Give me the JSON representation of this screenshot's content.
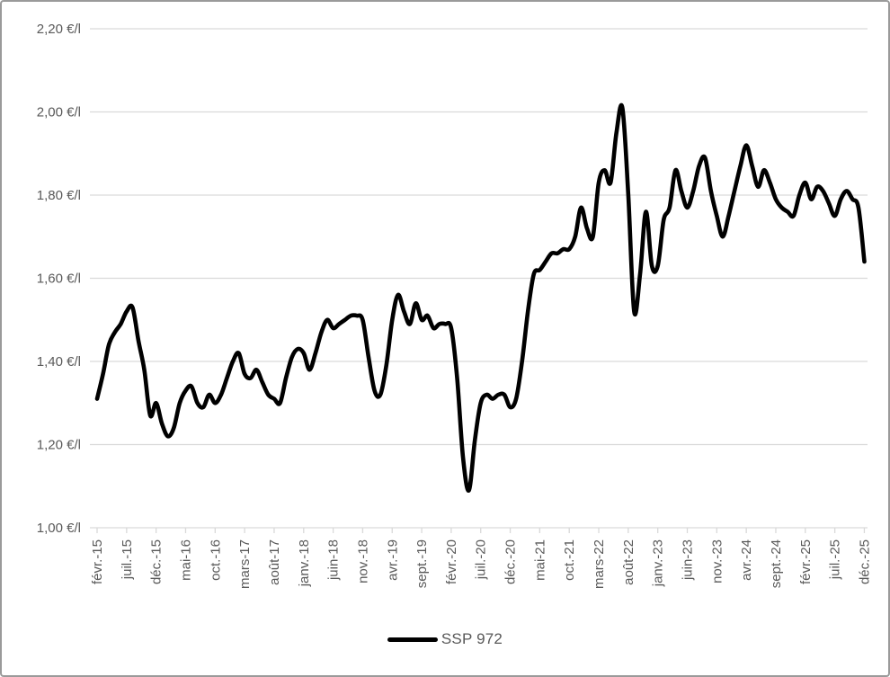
{
  "chart_data": {
    "type": "line",
    "title": "",
    "xlabel": "",
    "ylabel": "",
    "ylim": [
      1.0,
      2.2
    ],
    "y_step": 0.2,
    "y_tick_labels": [
      "2,20 €/l",
      "2,00 €/l",
      "1,80 €/l",
      "1,60 €/l",
      "1,40 €/l",
      "1,20 €/l",
      "1,00 €/l"
    ],
    "x_tick_labels": [
      "févr.-15",
      "juil.-15",
      "déc.-15",
      "mai-16",
      "oct.-16",
      "mars-17",
      "août-17",
      "janv.-18",
      "juin-18",
      "nov.-18",
      "avr.-19",
      "sept.-19",
      "févr.-20",
      "juil.-20",
      "déc.-20",
      "mai-21",
      "oct.-21",
      "mars-22",
      "août-22",
      "janv.-23",
      "juin-23",
      "nov.-23",
      "avr.-24",
      "sept.-24",
      "févr.-25",
      "juil.-25",
      "déc.-25"
    ],
    "x_tick_every_n_points": 5,
    "x_unit": "month",
    "grid": "horizontal",
    "legend_position": "bottom",
    "series": [
      {
        "name": "SSP 972",
        "values": [
          1.31,
          1.37,
          1.44,
          1.47,
          1.49,
          1.52,
          1.53,
          1.45,
          1.38,
          1.27,
          1.3,
          1.25,
          1.22,
          1.24,
          1.3,
          1.33,
          1.34,
          1.3,
          1.29,
          1.32,
          1.3,
          1.32,
          1.36,
          1.4,
          1.42,
          1.37,
          1.36,
          1.38,
          1.35,
          1.32,
          1.31,
          1.3,
          1.36,
          1.41,
          1.43,
          1.42,
          1.38,
          1.42,
          1.47,
          1.5,
          1.48,
          1.49,
          1.5,
          1.51,
          1.51,
          1.5,
          1.41,
          1.33,
          1.32,
          1.39,
          1.5,
          1.56,
          1.52,
          1.49,
          1.54,
          1.5,
          1.51,
          1.48,
          1.49,
          1.49,
          1.48,
          1.36,
          1.17,
          1.09,
          1.21,
          1.3,
          1.32,
          1.31,
          1.32,
          1.32,
          1.29,
          1.31,
          1.4,
          1.52,
          1.61,
          1.62,
          1.64,
          1.66,
          1.66,
          1.67,
          1.67,
          1.7,
          1.77,
          1.72,
          1.7,
          1.83,
          1.86,
          1.83,
          1.95,
          2.01,
          1.8,
          1.52,
          1.61,
          1.76,
          1.63,
          1.63,
          1.74,
          1.77,
          1.86,
          1.81,
          1.77,
          1.81,
          1.87,
          1.89,
          1.81,
          1.75,
          1.7,
          1.75,
          1.81,
          1.87,
          1.92,
          1.87,
          1.82,
          1.86,
          1.83,
          1.79,
          1.77,
          1.76,
          1.75,
          1.8,
          1.83,
          1.79,
          1.82,
          1.81,
          1.78,
          1.75,
          1.79,
          1.81,
          1.79,
          1.77,
          1.64
        ]
      }
    ],
    "colors": {
      "line": "#000000",
      "gridline": "#d9d9d9",
      "axis_text": "#595959",
      "frame_border": "#9a9a9a",
      "background": "#ffffff"
    }
  }
}
